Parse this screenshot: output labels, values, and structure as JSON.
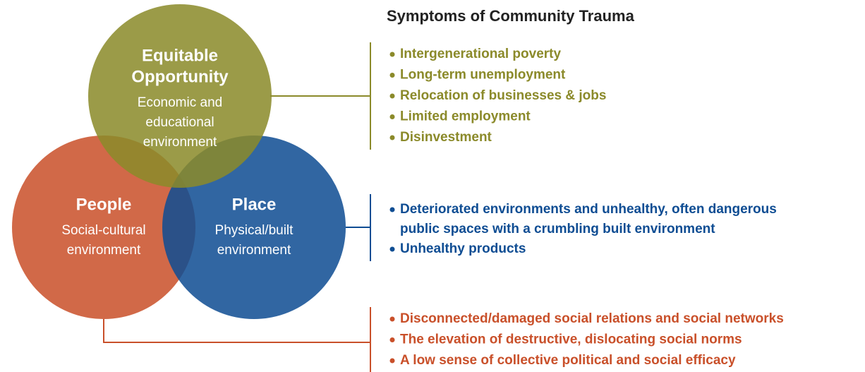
{
  "title": "Symptoms of Community Trauma",
  "circles": [
    {
      "title": [
        "People"
      ],
      "subtitle": [
        "Social-cultural",
        "environment"
      ]
    },
    {
      "title": [
        "Place"
      ],
      "subtitle": [
        "Physical/built",
        "environment"
      ]
    },
    {
      "title": [
        "Equitable",
        "Opportunity"
      ],
      "subtitle": [
        "Economic and",
        "educational",
        "environment"
      ]
    }
  ],
  "symptom_groups": [
    {
      "items": [
        [
          "Intergenerational poverty"
        ],
        [
          "Long-term unemployment"
        ],
        [
          "Relocation of businesses & jobs"
        ],
        [
          "Limited employment"
        ],
        [
          "Disinvestment"
        ]
      ]
    },
    {
      "items": [
        [
          "Deteriorated environments and unhealthy, often dangerous",
          "public spaces with a crumbling built environment"
        ],
        [
          "Unhealthy products"
        ]
      ]
    },
    {
      "items": [
        [
          "Disconnected/damaged social relations and social networks"
        ],
        [
          "The elevation of destructive, dislocating social norms"
        ],
        [
          "A low sense of collective political and social efficacy"
        ]
      ]
    }
  ]
}
